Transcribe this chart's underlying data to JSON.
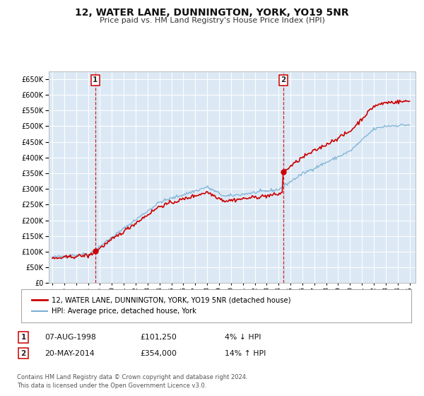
{
  "title": "12, WATER LANE, DUNNINGTON, YORK, YO19 5NR",
  "subtitle": "Price paid vs. HM Land Registry's House Price Index (HPI)",
  "title_fontsize": 10,
  "subtitle_fontsize": 8,
  "bg_color": "#dce9f5",
  "grid_color": "#ffffff",
  "line_color_red": "#cc0000",
  "line_color_blue": "#7ab0d4",
  "marker_color": "#cc0000",
  "vline_color": "#cc0000",
  "ylim": [
    0,
    675000
  ],
  "yticks": [
    0,
    50000,
    100000,
    150000,
    200000,
    250000,
    300000,
    350000,
    400000,
    450000,
    500000,
    550000,
    600000,
    650000
  ],
  "xlim_start": 1994.7,
  "xlim_end": 2025.5,
  "xtick_years": [
    1995,
    1996,
    1997,
    1998,
    1999,
    2000,
    2001,
    2002,
    2003,
    2004,
    2005,
    2006,
    2007,
    2008,
    2009,
    2010,
    2011,
    2012,
    2013,
    2014,
    2015,
    2016,
    2017,
    2018,
    2019,
    2020,
    2021,
    2022,
    2023,
    2024,
    2025
  ],
  "event1_x": 1998.6,
  "event1_y": 101250,
  "event1_label": "1",
  "event2_x": 2014.38,
  "event2_y": 354000,
  "event2_label": "2",
  "legend_line1": "12, WATER LANE, DUNNINGTON, YORK, YO19 5NR (detached house)",
  "legend_line2": "HPI: Average price, detached house, York",
  "annotation1_num": "1",
  "annotation1_date": "07-AUG-1998",
  "annotation1_price": "£101,250",
  "annotation1_hpi": "4% ↓ HPI",
  "annotation2_num": "2",
  "annotation2_date": "20-MAY-2014",
  "annotation2_price": "£354,000",
  "annotation2_hpi": "14% ↑ HPI",
  "footer_line1": "Contains HM Land Registry data © Crown copyright and database right 2024.",
  "footer_line2": "This data is licensed under the Open Government Licence v3.0."
}
